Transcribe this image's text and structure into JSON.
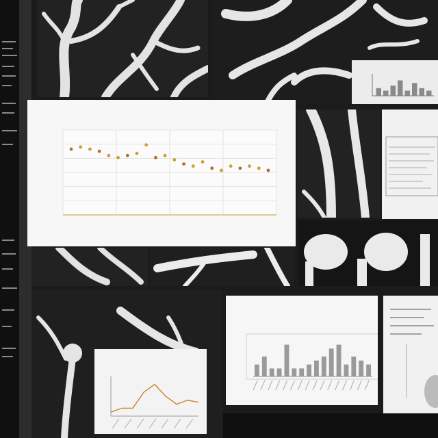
{
  "main_chart": {
    "title": "",
    "xlabel": "",
    "chart_data": {
      "type": "scatter",
      "x": [
        1,
        2,
        3,
        4,
        5,
        6,
        7,
        8,
        9,
        10,
        11,
        12,
        13,
        14,
        15,
        16,
        17,
        18,
        19,
        20,
        21,
        22
      ],
      "values": [
        0.71,
        0.72,
        0.71,
        0.7,
        0.68,
        0.67,
        0.68,
        0.69,
        0.73,
        0.67,
        0.68,
        0.66,
        0.64,
        0.63,
        0.65,
        0.62,
        0.61,
        0.63,
        0.62,
        0.63,
        0.62,
        0.61
      ],
      "ylim": [
        0.4,
        0.8
      ],
      "grid": true,
      "point_color": "#d49a33",
      "line_color": "#e0a45a"
    }
  },
  "line_chart": {
    "chart_data": {
      "type": "line",
      "x": [
        1,
        2,
        3,
        4,
        5,
        6,
        7,
        8,
        9
      ],
      "values": [
        0.1,
        0.2,
        0.2,
        0.6,
        0.8,
        0.5,
        0.3,
        0.4,
        0.35
      ],
      "ylim": [
        0,
        1
      ],
      "line_color": "#c8842a"
    }
  },
  "bar_chart": {
    "chart_data": {
      "type": "bar",
      "values": [
        3,
        5,
        2,
        2,
        8,
        2,
        2,
        3,
        4,
        5,
        7,
        8,
        3,
        5,
        4,
        3
      ],
      "ylim": [
        0,
        10
      ],
      "bar_color": "#9a9a9a"
    }
  },
  "thumb_bars": {
    "chart_data": {
      "type": "bar",
      "values": [
        3,
        2,
        4,
        6,
        2,
        5,
        3,
        2
      ],
      "ylim": [
        0,
        8
      ],
      "bar_color": "#8a8a8a"
    }
  },
  "colors": {
    "paper": "#f7f7f7",
    "dark": "#1b1b1b",
    "accent": "#d49a33"
  }
}
